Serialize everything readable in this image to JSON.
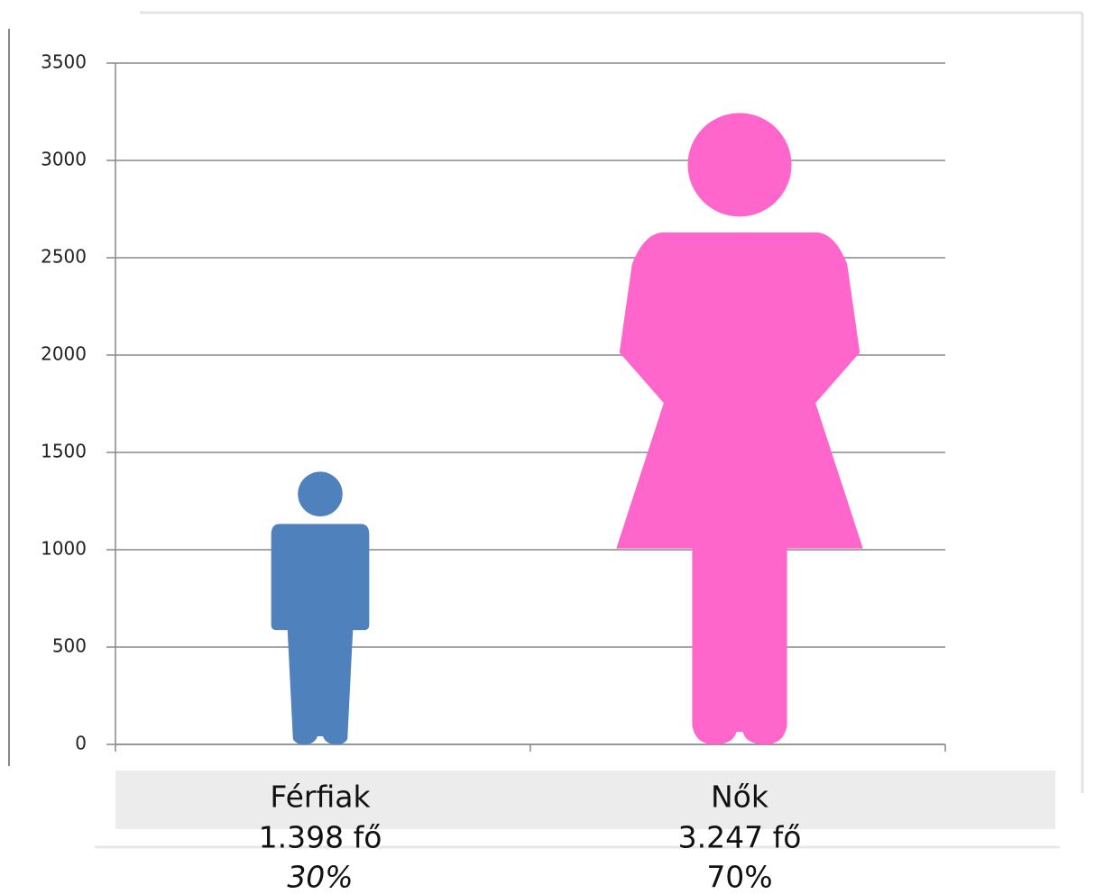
{
  "chart_data": {
    "type": "pictogram",
    "categories": [
      "Férfiak",
      "Nők"
    ],
    "values": [
      1398,
      3247
    ],
    "value_labels": [
      "1.398 fő",
      "3.247 fő"
    ],
    "share_values": [
      30,
      70
    ],
    "share_labels": [
      "30%",
      "70%"
    ],
    "colors": [
      "#4f81bd",
      "#ff66cc"
    ],
    "ylim": [
      0,
      3500
    ],
    "yticks": [
      0,
      500,
      1000,
      1500,
      2000,
      2500,
      3000,
      3500
    ],
    "grid": true
  }
}
